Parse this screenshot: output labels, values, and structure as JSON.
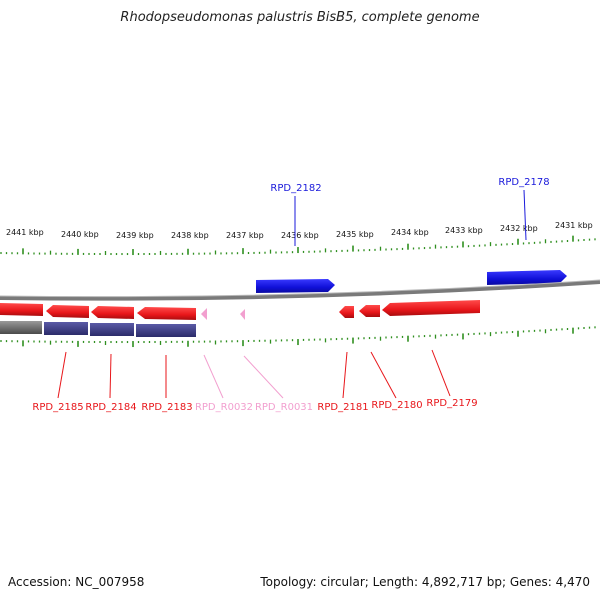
{
  "title": "Rhodopseudomonas palustris BisB5, complete genome",
  "footer": {
    "accession": "Accession: NC_007958",
    "summary": "Topology: circular; Length: 4,892,717 bp; Genes: 4,470"
  },
  "colors": {
    "forward_gene": "#1a1adb",
    "reverse_gene": "#e8161a",
    "rna": "#f29fcf",
    "ruler_tick": "#2f8f1f",
    "backbone": "#6b6b6b",
    "reverse_cds_band": "#3f3f86"
  },
  "ruler": {
    "top_labels": [
      "2441 kbp",
      "2440 kbp",
      "2439 kbp",
      "2438 kbp",
      "2437 kbp",
      "2436 kbp",
      "2435 kbp",
      "2434 kbp",
      "2433 kbp",
      "2432 kbp",
      "2431 kbp"
    ]
  },
  "genes": [
    {
      "name": "RPD_2182",
      "strand": "forward",
      "type": "CDS"
    },
    {
      "name": "RPD_2178",
      "strand": "forward",
      "type": "CDS"
    },
    {
      "name": "RPD_2185",
      "strand": "reverse",
      "type": "CDS"
    },
    {
      "name": "RPD_2184",
      "strand": "reverse",
      "type": "CDS"
    },
    {
      "name": "RPD_2183",
      "strand": "reverse",
      "type": "CDS"
    },
    {
      "name": "RPD_R0032",
      "strand": "reverse",
      "type": "RNA"
    },
    {
      "name": "RPD_R0031",
      "strand": "reverse",
      "type": "RNA"
    },
    {
      "name": "RPD_2181",
      "strand": "reverse",
      "type": "CDS"
    },
    {
      "name": "RPD_2180",
      "strand": "reverse",
      "type": "CDS"
    },
    {
      "name": "RPD_2179",
      "strand": "reverse",
      "type": "CDS"
    }
  ]
}
